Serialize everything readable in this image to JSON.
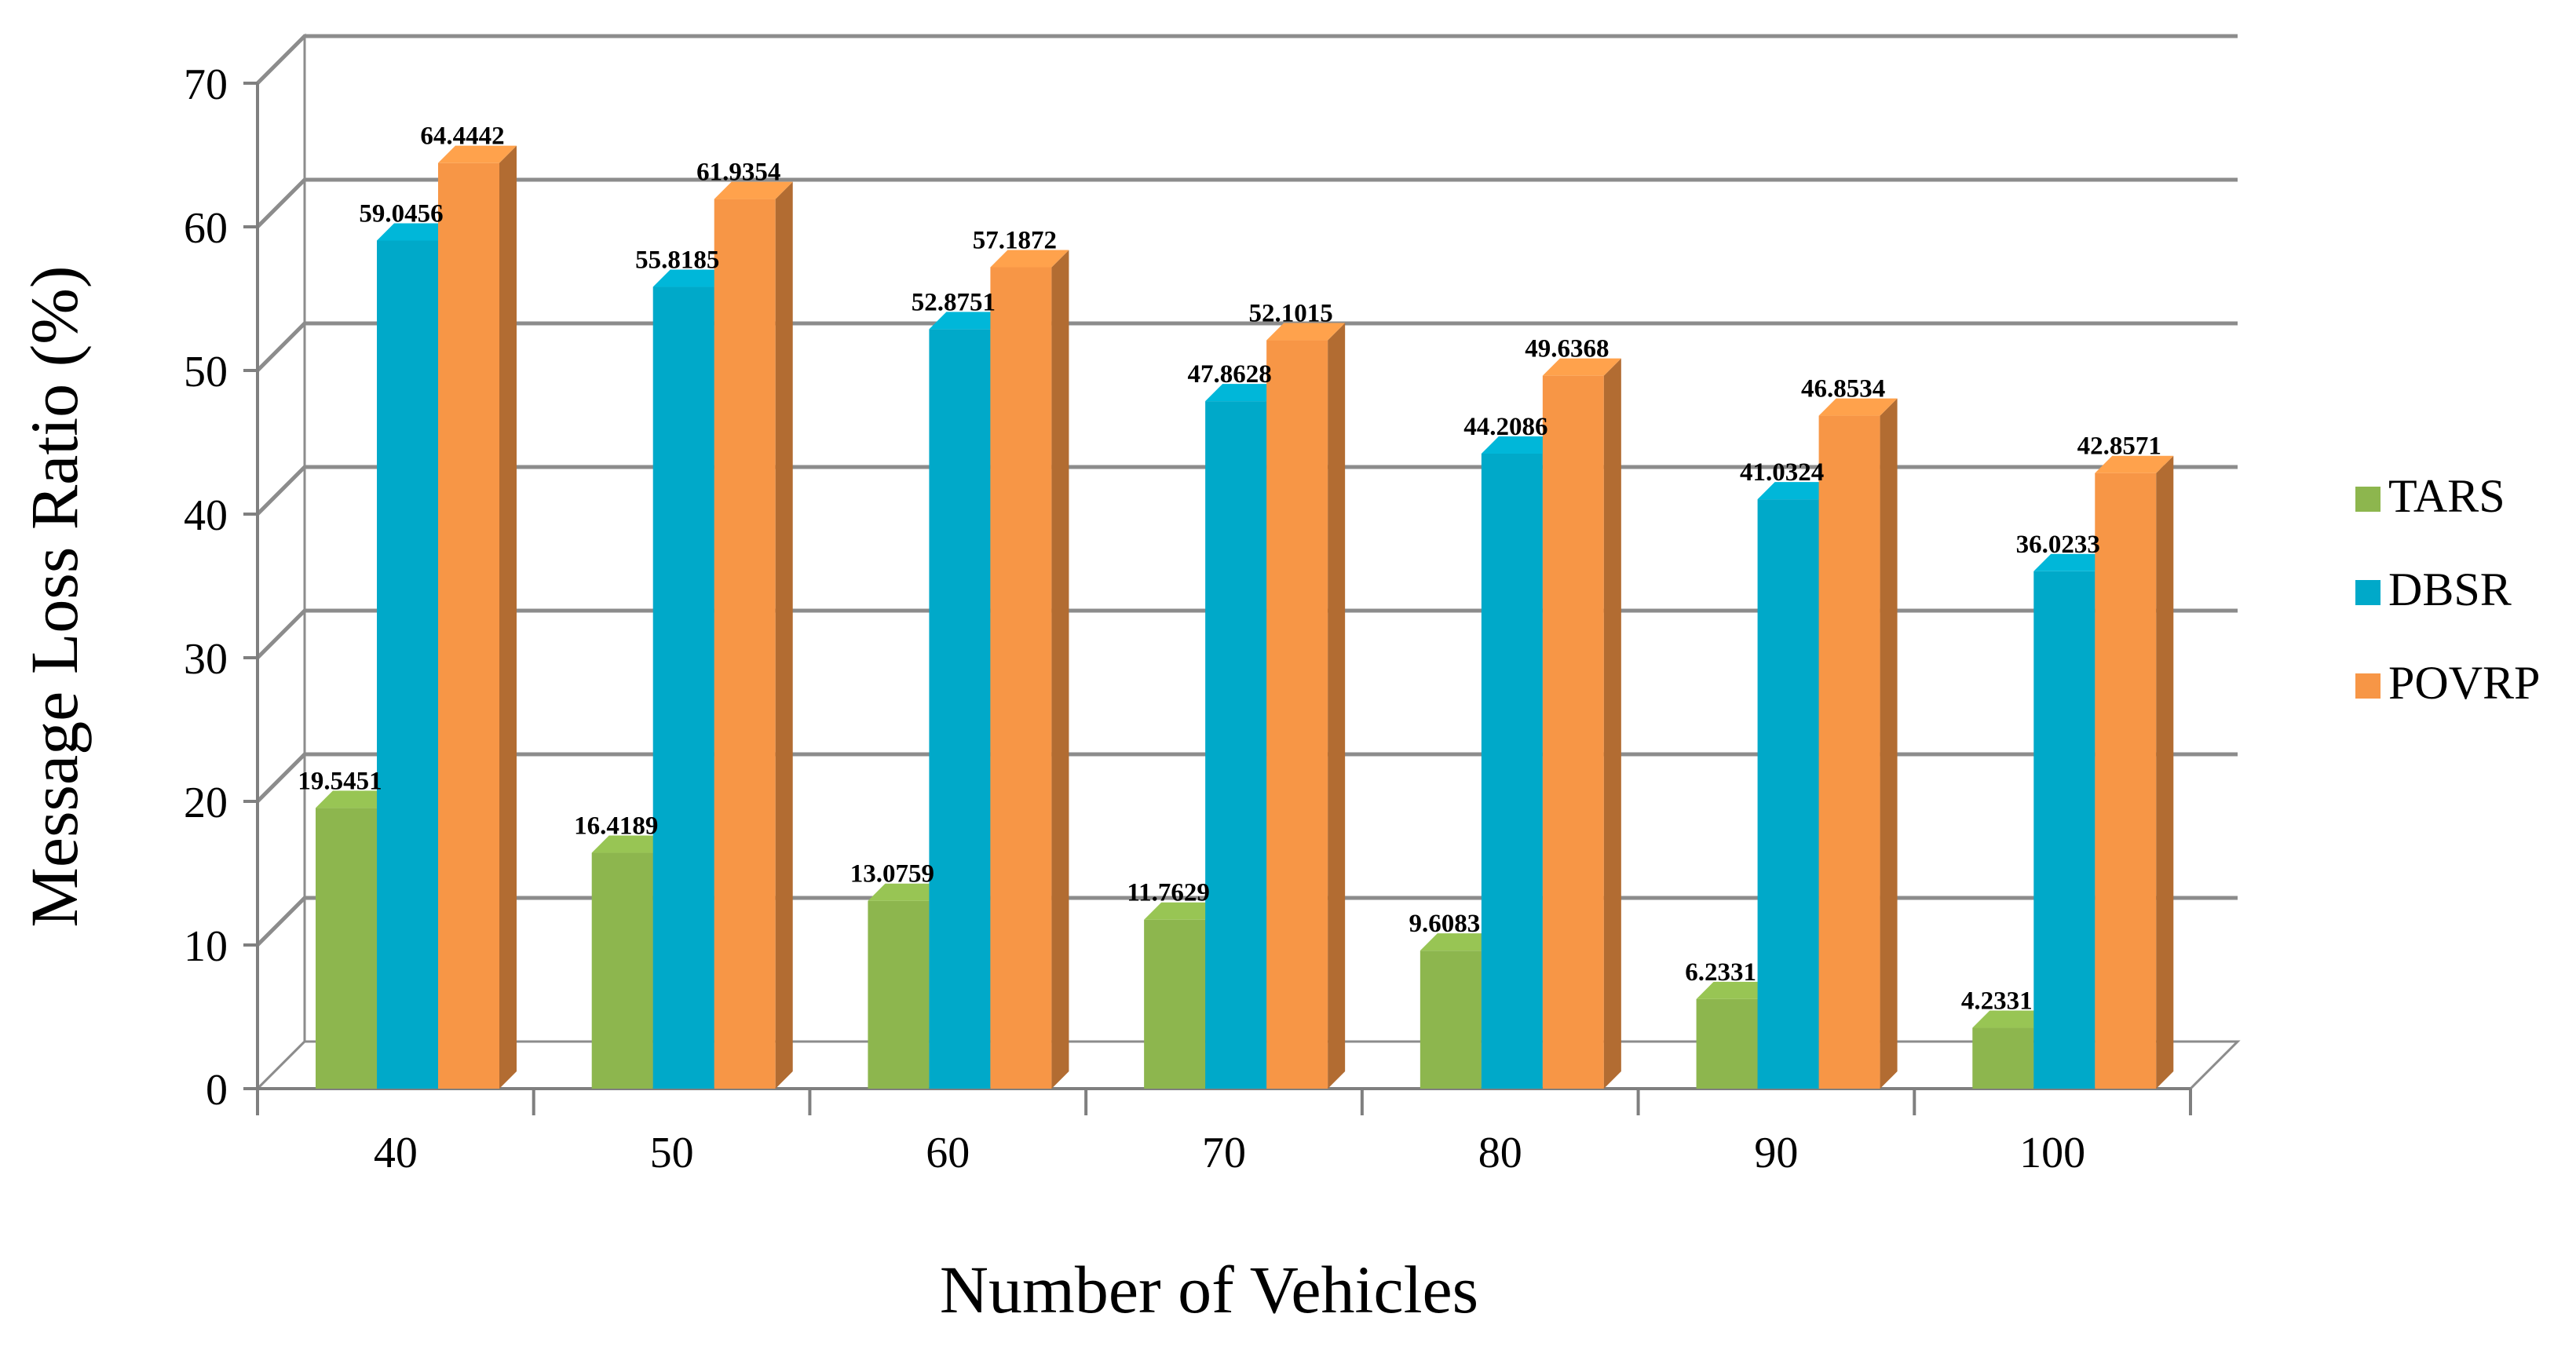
{
  "chart_data": {
    "type": "bar",
    "style": "3d-clustered-column",
    "title": "",
    "xlabel": "Number of  Vehicles",
    "ylabel": "Message Loss Ratio (%)",
    "categories": [
      "40",
      "50",
      "60",
      "70",
      "80",
      "90",
      "100"
    ],
    "ylim": [
      0,
      70
    ],
    "yticks": [
      "0",
      "10",
      "20",
      "30",
      "40",
      "50",
      "60",
      "70"
    ],
    "grid": true,
    "legend_position": "right",
    "series": [
      {
        "name": "TARS",
        "color": "#8db64e",
        "values": [
          19.5451,
          16.4189,
          13.0759,
          11.7629,
          9.6083,
          6.2331,
          4.2331
        ],
        "labels": [
          "19.5451",
          "16.4189",
          "13.0759",
          "11.7629",
          "9.6083",
          "6.2331",
          "4.2331"
        ]
      },
      {
        "name": "DBSR",
        "color": "#00a9c9",
        "values": [
          59.0456,
          55.8185,
          52.8751,
          47.8628,
          44.2086,
          41.0324,
          36.0233
        ],
        "labels": [
          "59.0456",
          "55.8185",
          "52.8751",
          "47.8628",
          "44.2086",
          "41.0324",
          "36.0233"
        ]
      },
      {
        "name": "POVRP",
        "color": "#f79646",
        "values": [
          64.4442,
          61.9354,
          57.1872,
          52.1015,
          49.6368,
          46.8534,
          42.8571
        ],
        "labels": [
          "64.4442",
          "61.9354",
          "57.1872",
          "52.1015",
          "49.6368",
          "46.8534",
          "42.8571"
        ]
      }
    ]
  }
}
